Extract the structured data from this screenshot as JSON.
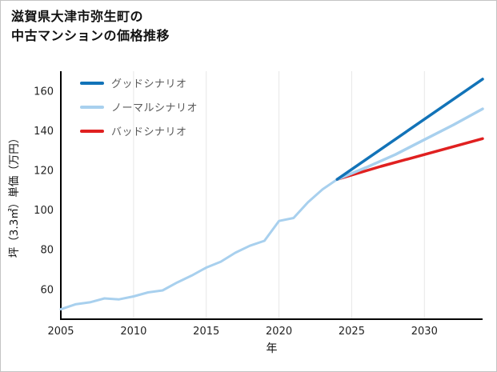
{
  "title": {
    "line1": "滋賀県大津市弥生町の",
    "line2": "中古マンションの価格推移"
  },
  "legend": [
    {
      "id": "good",
      "label": "グッドシナリオ",
      "color": "#1273b8"
    },
    {
      "id": "normal",
      "label": "ノーマルシナリオ",
      "color": "#a8d0ee"
    },
    {
      "id": "bad",
      "label": "バッドシナリオ",
      "color": "#e02020"
    }
  ],
  "chart_data": {
    "type": "line",
    "title": "滋賀県大津市弥生町の中古マンションの価格推移",
    "xlabel": "年",
    "ylabel": "坪（3.3㎡）単価（万円）",
    "xlim": [
      2005,
      2034
    ],
    "ylim": [
      45,
      170
    ],
    "x_ticks": [
      2005,
      2010,
      2015,
      2020,
      2025,
      2030
    ],
    "y_ticks": [
      60,
      80,
      100,
      120,
      140,
      160
    ],
    "grid": "vertical-only",
    "legend_position": "top-left-inside",
    "colors": {
      "grid": "#e7e7e7",
      "axis": "#000000",
      "tick_text": "#222222",
      "axis_label_text": "#111111"
    },
    "series": [
      {
        "id": "history",
        "color": "#a8d0ee",
        "width": 3,
        "x": [
          2005,
          2006,
          2007,
          2008,
          2009,
          2010,
          2011,
          2012,
          2013,
          2014,
          2015,
          2016,
          2017,
          2018,
          2019,
          2020,
          2021,
          2022,
          2023,
          2024
        ],
        "values": [
          50,
          52.5,
          53.5,
          55.5,
          55,
          56.5,
          58.5,
          59.5,
          63.5,
          67,
          71,
          74,
          78.5,
          82,
          84.5,
          94.5,
          96,
          104,
          110.5,
          115.5
        ]
      },
      {
        "id": "bad-scenario",
        "color": "#e02020",
        "width": 3.5,
        "x": [
          2024,
          2027,
          2030,
          2034
        ],
        "values": [
          115.5,
          122,
          128,
          136
        ]
      },
      {
        "id": "normal-scenario",
        "color": "#a8d0ee",
        "width": 3.5,
        "x": [
          2024,
          2026,
          2028,
          2030,
          2032,
          2034
        ],
        "values": [
          115.5,
          121.5,
          128,
          135.5,
          143,
          151
        ]
      },
      {
        "id": "good-scenario",
        "color": "#1273b8",
        "width": 3.5,
        "x": [
          2024,
          2034
        ],
        "values": [
          115.5,
          166
        ]
      }
    ]
  }
}
